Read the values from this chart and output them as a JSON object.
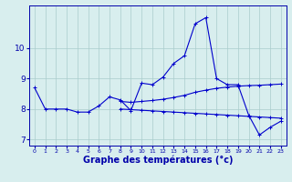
{
  "x": [
    0,
    1,
    2,
    3,
    4,
    5,
    6,
    7,
    8,
    9,
    10,
    11,
    12,
    13,
    14,
    15,
    16,
    17,
    18,
    19,
    20,
    21,
    22,
    23
  ],
  "line1": [
    8.7,
    8.0,
    8.0,
    8.0,
    7.9,
    7.9,
    8.1,
    8.4,
    8.3,
    7.95,
    8.85,
    8.8,
    9.05,
    9.5,
    9.75,
    10.8,
    11.0,
    9.0,
    8.8,
    8.8,
    7.8,
    7.15,
    7.4,
    7.6
  ],
  "line2": [
    null,
    null,
    null,
    null,
    null,
    null,
    null,
    null,
    8.25,
    8.22,
    8.25,
    8.28,
    8.32,
    8.38,
    8.45,
    8.55,
    8.62,
    8.68,
    8.72,
    8.75,
    8.77,
    8.78,
    8.8,
    8.82
  ],
  "line3": [
    null,
    null,
    null,
    null,
    null,
    null,
    null,
    null,
    8.0,
    7.98,
    7.96,
    7.94,
    7.92,
    7.9,
    7.88,
    7.86,
    7.84,
    7.82,
    7.8,
    7.78,
    7.76,
    7.74,
    7.72,
    7.7
  ],
  "bg_color": "#d8eeee",
  "grid_color": "#aacccc",
  "line_color": "#0000cc",
  "xlabel": "Graphe des températures (°c)",
  "xlabel_fontsize": 7,
  "ylim": [
    6.8,
    11.4
  ],
  "yticks": [
    7,
    8,
    9,
    10
  ],
  "xlim": [
    -0.5,
    23.5
  ],
  "title_color": "#0000aa",
  "marker": "+"
}
